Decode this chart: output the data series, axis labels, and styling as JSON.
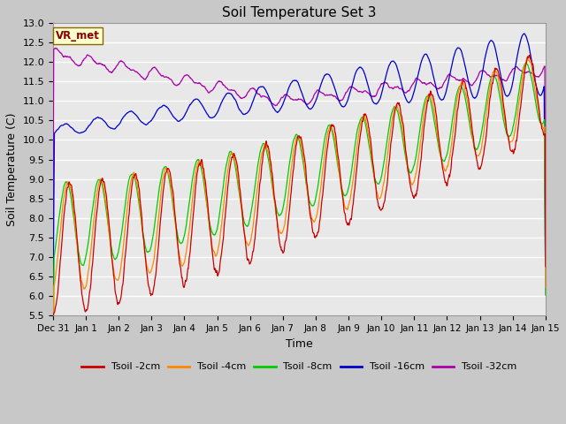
{
  "title": "Soil Temperature Set 3",
  "xlabel": "Time",
  "ylabel": "Soil Temperature (C)",
  "ylim": [
    5.5,
    13.0
  ],
  "yticks": [
    5.5,
    6.0,
    6.5,
    7.0,
    7.5,
    8.0,
    8.5,
    9.0,
    9.5,
    10.0,
    10.5,
    11.0,
    11.5,
    12.0,
    12.5,
    13.0
  ],
  "fig_bg_color": "#c8c8c8",
  "plot_bg_color": "#e8e8e8",
  "grid_color": "#ffffff",
  "line_colors": {
    "2cm": "#cc0000",
    "4cm": "#ff8800",
    "8cm": "#00cc00",
    "16cm": "#0000cc",
    "32cm": "#aa00aa"
  },
  "legend_labels": [
    "Tsoil -2cm",
    "Tsoil -4cm",
    "Tsoil -8cm",
    "Tsoil -16cm",
    "Tsoil -32cm"
  ],
  "vr_met_label": "VR_met",
  "vr_met_bg": "#ffffcc",
  "vr_met_border": "#886600",
  "vr_met_text_color": "#880000",
  "x_tick_labels": [
    "Dec 31",
    "Jan 1",
    "Jan 2",
    "Jan 3",
    "Jan 4",
    "Jan 5",
    "Jan 6",
    "Jan 7",
    "Jan 8",
    "Jan 9",
    "Jan 10",
    "Jan 11",
    "Jan 12",
    "Jan 13",
    "Jan 14",
    "Jan 15"
  ],
  "n_points": 1440,
  "title_fontsize": 11,
  "axis_label_fontsize": 9,
  "tick_fontsize": 8
}
